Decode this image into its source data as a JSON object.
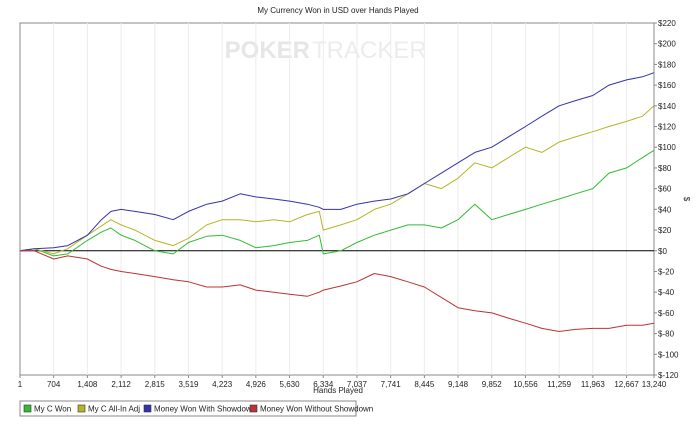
{
  "chart_data": {
    "type": "line",
    "title": "My Currency Won in USD over Hands Played",
    "xlabel": "Hands Played",
    "ylabel": "$",
    "watermark": [
      "POKER",
      "TRACKER"
    ],
    "xlim": [
      1,
      13240
    ],
    "ylim": [
      -120,
      220
    ],
    "x_ticks": [
      1,
      704,
      1408,
      2112,
      2815,
      3519,
      4223,
      4926,
      5630,
      6334,
      7037,
      7741,
      8445,
      9148,
      9852,
      10556,
      11259,
      11963,
      12667,
      13240
    ],
    "x_tick_labels": [
      "1",
      "704",
      "1,408",
      "2,112",
      "2,815",
      "3,519",
      "4,223",
      "4,926",
      "5,630",
      "6,334",
      "7,037",
      "7,741",
      "8,445",
      "9,148",
      "9,852",
      "10,556",
      "11,259",
      "11,963",
      "12,667",
      "13,240"
    ],
    "y_ticks": [
      -120,
      -100,
      -80,
      -60,
      -40,
      -20,
      0,
      20,
      40,
      60,
      80,
      100,
      120,
      140,
      160,
      180,
      200,
      220
    ],
    "y_tick_labels": [
      "$-120",
      "$-100",
      "$-80",
      "$-60",
      "$-40",
      "$-20",
      "$0",
      "$20",
      "$40",
      "$60",
      "$80",
      "$100",
      "$120",
      "$140",
      "$160",
      "$180",
      "$200",
      "$220"
    ],
    "grid": "vertical",
    "legend_position": "bottom-left",
    "x": [
      1,
      300,
      704,
      1000,
      1408,
      1700,
      1900,
      2112,
      2400,
      2815,
      3200,
      3519,
      3900,
      4223,
      4600,
      4926,
      5300,
      5630,
      6000,
      6250,
      6334,
      6700,
      7037,
      7400,
      7741,
      8100,
      8445,
      8800,
      9148,
      9500,
      9852,
      10200,
      10556,
      10900,
      11259,
      11600,
      11963,
      12300,
      12667,
      13000,
      13240
    ],
    "series": [
      {
        "name": "My C Won",
        "color": "#33bb33",
        "values": [
          0,
          2,
          -5,
          -3,
          10,
          18,
          22,
          15,
          10,
          0,
          -3,
          8,
          14,
          15,
          10,
          3,
          5,
          8,
          10,
          15,
          -3,
          0,
          8,
          15,
          20,
          25,
          25,
          22,
          30,
          45,
          30,
          35,
          40,
          45,
          50,
          55,
          60,
          75,
          80,
          90,
          97
        ]
      },
      {
        "name": "My C All-In Adj",
        "color": "#b5b527",
        "values": [
          0,
          2,
          -3,
          2,
          15,
          24,
          30,
          25,
          20,
          10,
          5,
          12,
          25,
          30,
          30,
          28,
          30,
          28,
          35,
          38,
          20,
          25,
          30,
          40,
          45,
          55,
          65,
          60,
          70,
          85,
          80,
          90,
          100,
          95,
          105,
          110,
          115,
          120,
          125,
          130,
          140
        ]
      },
      {
        "name": "Money Won With Showdown",
        "color": "#3333aa",
        "values": [
          0,
          2,
          3,
          5,
          15,
          30,
          38,
          40,
          38,
          35,
          30,
          38,
          45,
          48,
          55,
          52,
          50,
          48,
          45,
          42,
          40,
          40,
          45,
          48,
          50,
          55,
          65,
          75,
          85,
          95,
          100,
          110,
          120,
          130,
          140,
          145,
          150,
          160,
          165,
          168,
          172
        ]
      },
      {
        "name": "Money Won Without Showdown",
        "color": "#bb3333",
        "values": [
          0,
          0,
          -8,
          -5,
          -8,
          -15,
          -18,
          -20,
          -22,
          -25,
          -28,
          -30,
          -35,
          -35,
          -33,
          -38,
          -40,
          -42,
          -44,
          -40,
          -38,
          -34,
          -30,
          -22,
          -25,
          -30,
          -35,
          -45,
          -55,
          -58,
          -60,
          -65,
          -70,
          -75,
          -78,
          -76,
          -75,
          -75,
          -72,
          -72,
          -70
        ]
      }
    ]
  }
}
